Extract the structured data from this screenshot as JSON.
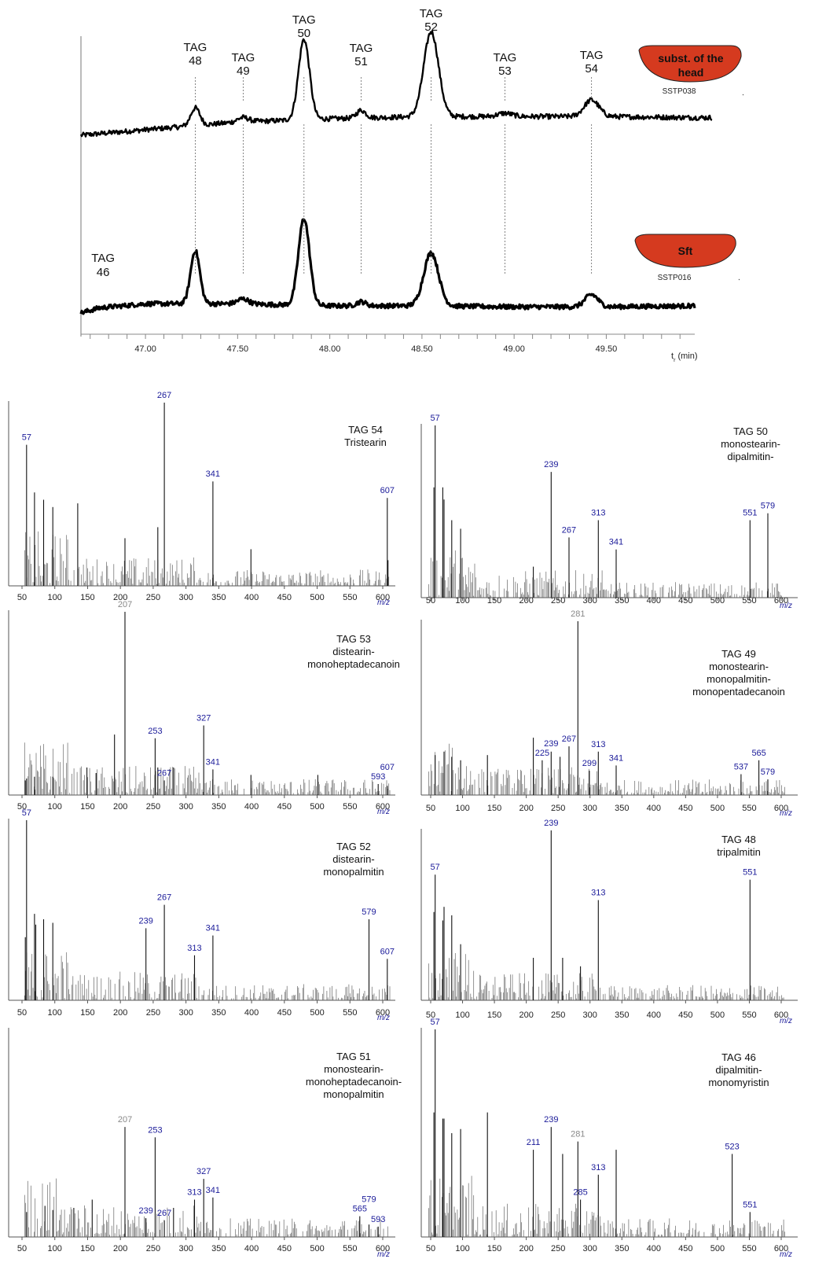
{
  "colors": {
    "annotation": "#1a1a99",
    "annotation_gray": "#888888",
    "badge_fill": "#d53a1f",
    "trace": "#000000"
  },
  "chart_data": [
    {
      "type": "line",
      "chart": "chromatogram",
      "xlim": [
        46.65,
        49.98
      ],
      "xticks": [
        "47.00",
        "47.50",
        "48.00",
        "48.50",
        "49.00",
        "49.50"
      ],
      "xtick_values": [
        47.0,
        47.5,
        48.0,
        48.5,
        49.0,
        49.5
      ],
      "xlabel": "tr (min)",
      "peaks": [
        {
          "label": [
            "TAG",
            "48"
          ],
          "rt": 47.27
        },
        {
          "label": [
            "TAG",
            "49"
          ],
          "rt": 47.53
        },
        {
          "label": [
            "TAG",
            "50"
          ],
          "rt": 47.86
        },
        {
          "label": [
            "TAG",
            "51"
          ],
          "rt": 48.17
        },
        {
          "label": [
            "TAG",
            "52"
          ],
          "rt": 48.55
        },
        {
          "label": [
            "TAG",
            "53"
          ],
          "rt": 48.95
        },
        {
          "label": [
            "TAG",
            "54"
          ],
          "rt": 49.42
        }
      ],
      "extra_labels": [
        {
          "label": [
            "TAG",
            "46"
          ],
          "rt": 46.77
        }
      ],
      "series": [
        {
          "sample": "SSTP038",
          "badge": "subst. of the head",
          "baseline": [
            [
              46.65,
              0.0
            ],
            [
              47.0,
              0.05
            ],
            [
              47.5,
              0.12
            ],
            [
              48.0,
              0.15
            ],
            [
              48.5,
              0.17
            ],
            [
              49.0,
              0.17
            ],
            [
              49.5,
              0.17
            ],
            [
              49.98,
              0.16
            ]
          ],
          "peaks": [
            [
              47.27,
              0.16,
              0.025
            ],
            [
              47.53,
              0.04,
              0.03
            ],
            [
              47.86,
              0.73,
              0.03
            ],
            [
              48.17,
              0.07,
              0.025
            ],
            [
              48.55,
              0.77,
              0.04
            ],
            [
              48.95,
              0.03,
              0.04
            ],
            [
              49.42,
              0.15,
              0.04
            ]
          ]
        },
        {
          "sample": "SSTP016",
          "badge": "Sft",
          "baseline": [
            [
              46.65,
              0.0
            ],
            [
              46.75,
              0.05
            ],
            [
              47.0,
              0.09
            ],
            [
              47.5,
              0.09
            ],
            [
              48.0,
              0.07
            ],
            [
              48.5,
              0.07
            ],
            [
              49.0,
              0.06
            ],
            [
              49.5,
              0.06
            ],
            [
              49.98,
              0.07
            ]
          ],
          "peaks": [
            [
              47.27,
              0.52,
              0.025
            ],
            [
              47.53,
              0.05,
              0.03
            ],
            [
              47.86,
              0.85,
              0.03
            ],
            [
              48.17,
              0.04,
              0.025
            ],
            [
              48.55,
              0.52,
              0.04
            ],
            [
              49.42,
              0.12,
              0.035
            ]
          ]
        }
      ]
    },
    {
      "type": "bar",
      "chart": "mass-spectrum",
      "title": [
        "TAG 54",
        "Tristearin"
      ],
      "xlim": [
        40,
        615
      ],
      "xticks": [
        50,
        100,
        150,
        200,
        250,
        300,
        350,
        400,
        450,
        500,
        550,
        600
      ],
      "xlabel": "m/z",
      "ylim": [
        0,
        100
      ],
      "peaks": [
        [
          57,
          77
        ],
        [
          69,
          51
        ],
        [
          83,
          47
        ],
        [
          97,
          43
        ],
        [
          135,
          45
        ],
        [
          207,
          26
        ],
        [
          257,
          32
        ],
        [
          267,
          100
        ],
        [
          341,
          57
        ],
        [
          399,
          20
        ],
        [
          607,
          48
        ],
        [
          608,
          14
        ]
      ],
      "annotations": [
        {
          "mz": 57,
          "text": "57",
          "color": "blue"
        },
        {
          "mz": 267,
          "text": "267",
          "color": "blue"
        },
        {
          "mz": 341,
          "text": "341",
          "color": "blue"
        },
        {
          "mz": 607,
          "text": "607",
          "color": "blue"
        }
      ]
    },
    {
      "type": "bar",
      "chart": "mass-spectrum",
      "title": [
        "TAG 50",
        "monostearin-",
        "dipalmitin-"
      ],
      "xlim": [
        33,
        610
      ],
      "xticks": [
        50,
        100,
        150,
        200,
        250,
        300,
        350,
        400,
        450,
        500,
        550,
        600
      ],
      "xlabel": "m/z",
      "ylim": [
        0,
        100
      ],
      "peaks": [
        [
          55,
          64
        ],
        [
          57,
          100
        ],
        [
          69,
          64
        ],
        [
          71,
          57
        ],
        [
          83,
          45
        ],
        [
          97,
          40
        ],
        [
          211,
          18
        ],
        [
          239,
          73
        ],
        [
          267,
          35
        ],
        [
          313,
          45
        ],
        [
          341,
          28
        ],
        [
          551,
          45
        ],
        [
          579,
          49
        ]
      ],
      "annotations": [
        {
          "mz": 57,
          "text": "57",
          "color": "blue"
        },
        {
          "mz": 239,
          "text": "239",
          "color": "blue"
        },
        {
          "mz": 267,
          "text": "267",
          "color": "blue"
        },
        {
          "mz": 313,
          "text": "313",
          "color": "blue"
        },
        {
          "mz": 341,
          "text": "341",
          "color": "blue"
        },
        {
          "mz": 551,
          "text": "551",
          "color": "blue"
        },
        {
          "mz": 579,
          "text": "579",
          "color": "blue"
        }
      ]
    },
    {
      "type": "bar",
      "chart": "mass-spectrum",
      "title": [
        "TAG 53",
        "distearin-",
        "monoheptadecanoin"
      ],
      "xlim": [
        40,
        615
      ],
      "xticks": [
        50,
        100,
        150,
        200,
        250,
        300,
        350,
        400,
        450,
        500,
        550,
        600
      ],
      "xlabel": "m/z",
      "ylim": [
        0,
        100
      ],
      "peaks": [
        [
          55,
          8
        ],
        [
          57,
          9
        ],
        [
          69,
          10
        ],
        [
          97,
          10
        ],
        [
          149,
          15
        ],
        [
          163,
          12
        ],
        [
          191,
          33
        ],
        [
          207,
          100
        ],
        [
          253,
          31
        ],
        [
          257,
          15
        ],
        [
          267,
          8
        ],
        [
          281,
          15
        ],
        [
          327,
          38
        ],
        [
          341,
          14
        ],
        [
          399,
          11
        ],
        [
          501,
          11
        ],
        [
          593,
          6
        ],
        [
          607,
          5
        ]
      ],
      "annotations": [
        {
          "mz": 207,
          "text": "207",
          "color": "gray"
        },
        {
          "mz": 253,
          "text": "253",
          "color": "blue"
        },
        {
          "mz": 267,
          "text": "267",
          "color": "blue"
        },
        {
          "mz": 327,
          "text": "327",
          "color": "blue"
        },
        {
          "mz": 341,
          "text": "341",
          "color": "blue"
        },
        {
          "mz": 593,
          "text": "593",
          "color": "blue"
        },
        {
          "mz": 607,
          "text": "607",
          "color": "blue"
        }
      ]
    },
    {
      "type": "bar",
      "chart": "mass-spectrum",
      "title": [
        "TAG 49",
        "monostearin-",
        "monopalmitin-",
        "monopentadecanoin"
      ],
      "xlim": [
        33,
        610
      ],
      "xticks": [
        50,
        100,
        150,
        200,
        250,
        300,
        350,
        400,
        450,
        500,
        550,
        600
      ],
      "xlabel": "m/z",
      "ylim": [
        0,
        100
      ],
      "peaks": [
        [
          57,
          23
        ],
        [
          71,
          25
        ],
        [
          83,
          22
        ],
        [
          97,
          20
        ],
        [
          139,
          23
        ],
        [
          211,
          33
        ],
        [
          225,
          20
        ],
        [
          239,
          25
        ],
        [
          253,
          22
        ],
        [
          267,
          28
        ],
        [
          281,
          100
        ],
        [
          299,
          14
        ],
        [
          313,
          25
        ],
        [
          341,
          17
        ],
        [
          537,
          12
        ],
        [
          565,
          20
        ],
        [
          579,
          9
        ]
      ],
      "annotations": [
        {
          "mz": 281,
          "text": "281",
          "color": "gray"
        },
        {
          "mz": 225,
          "text": "225",
          "color": "blue"
        },
        {
          "mz": 239,
          "text": "239",
          "color": "blue"
        },
        {
          "mz": 267,
          "text": "267",
          "color": "blue"
        },
        {
          "mz": 299,
          "text": "299",
          "color": "blue"
        },
        {
          "mz": 313,
          "text": "313",
          "color": "blue"
        },
        {
          "mz": 341,
          "text": "341",
          "color": "blue"
        },
        {
          "mz": 537,
          "text": "537",
          "color": "blue"
        },
        {
          "mz": 565,
          "text": "565",
          "color": "blue"
        },
        {
          "mz": 579,
          "text": "579",
          "color": "blue"
        }
      ]
    },
    {
      "type": "bar",
      "chart": "mass-spectrum",
      "title": [
        "TAG 52",
        "distearin-",
        "monopalmitin"
      ],
      "xlim": [
        40,
        615
      ],
      "xticks": [
        50,
        100,
        150,
        200,
        250,
        300,
        350,
        400,
        450,
        500,
        550,
        600
      ],
      "xlabel": "m/z",
      "ylim": [
        0,
        100
      ],
      "peaks": [
        [
          55,
          35
        ],
        [
          57,
          100
        ],
        [
          69,
          48
        ],
        [
          71,
          42
        ],
        [
          83,
          45
        ],
        [
          97,
          43
        ],
        [
          239,
          40
        ],
        [
          267,
          53
        ],
        [
          313,
          25
        ],
        [
          341,
          36
        ],
        [
          579,
          45
        ],
        [
          607,
          23
        ]
      ],
      "annotations": [
        {
          "mz": 57,
          "text": "57",
          "color": "blue"
        },
        {
          "mz": 239,
          "text": "239",
          "color": "blue"
        },
        {
          "mz": 267,
          "text": "267",
          "color": "blue"
        },
        {
          "mz": 313,
          "text": "313",
          "color": "blue"
        },
        {
          "mz": 341,
          "text": "341",
          "color": "blue"
        },
        {
          "mz": 579,
          "text": "579",
          "color": "blue"
        },
        {
          "mz": 607,
          "text": "607",
          "color": "blue"
        }
      ]
    },
    {
      "type": "bar",
      "chart": "mass-spectrum",
      "title": [
        "TAG 48",
        "tripalmitin"
      ],
      "xlim": [
        33,
        610
      ],
      "xticks": [
        50,
        100,
        150,
        200,
        250,
        300,
        350,
        400,
        450,
        500,
        550,
        600
      ],
      "xlabel": "m/z",
      "ylim": [
        0,
        100
      ],
      "peaks": [
        [
          55,
          52
        ],
        [
          57,
          74
        ],
        [
          69,
          47
        ],
        [
          71,
          55
        ],
        [
          83,
          50
        ],
        [
          97,
          33
        ],
        [
          211,
          25
        ],
        [
          239,
          100
        ],
        [
          257,
          25
        ],
        [
          285,
          20
        ],
        [
          313,
          59
        ],
        [
          551,
          71
        ]
      ],
      "annotations": [
        {
          "mz": 57,
          "text": "57",
          "color": "blue"
        },
        {
          "mz": 239,
          "text": "239",
          "color": "blue"
        },
        {
          "mz": 313,
          "text": "313",
          "color": "blue"
        },
        {
          "mz": 551,
          "text": "551",
          "color": "blue"
        }
      ]
    },
    {
      "type": "bar",
      "chart": "mass-spectrum",
      "title": [
        "TAG 51",
        "monostearin-",
        "monoheptadecanoin-",
        "monopalmitin"
      ],
      "xlim": [
        40,
        615
      ],
      "xticks": [
        50,
        100,
        150,
        200,
        250,
        300,
        350,
        400,
        450,
        500,
        550,
        600
      ],
      "xlabel": "m/z",
      "ylim": [
        0,
        100
      ],
      "peaks": [
        [
          57,
          12
        ],
        [
          85,
          15
        ],
        [
          97,
          13
        ],
        [
          129,
          14
        ],
        [
          157,
          18
        ],
        [
          207,
          53
        ],
        [
          239,
          9
        ],
        [
          253,
          48
        ],
        [
          267,
          8
        ],
        [
          281,
          14
        ],
        [
          313,
          18
        ],
        [
          327,
          28
        ],
        [
          341,
          19
        ],
        [
          565,
          10
        ],
        [
          579,
          6
        ],
        [
          593,
          5
        ]
      ],
      "annotations": [
        {
          "mz": 207,
          "text": "207",
          "color": "gray"
        },
        {
          "mz": 253,
          "text": "253",
          "color": "blue"
        },
        {
          "mz": 239,
          "text": "239",
          "color": "blue"
        },
        {
          "mz": 267,
          "text": "267",
          "color": "blue"
        },
        {
          "mz": 313,
          "text": "313",
          "color": "blue"
        },
        {
          "mz": 327,
          "text": "327",
          "color": "blue"
        },
        {
          "mz": 341,
          "text": "341",
          "color": "blue"
        },
        {
          "mz": 565,
          "text": "565",
          "color": "blue"
        },
        {
          "mz": 579,
          "text": "579",
          "color": "blue"
        },
        {
          "mz": 593,
          "text": "593",
          "color": "blue"
        }
      ]
    },
    {
      "type": "bar",
      "chart": "mass-spectrum",
      "title": [
        "TAG 46",
        "dipalmitin-",
        "monomyristin"
      ],
      "xlim": [
        33,
        610
      ],
      "xticks": [
        50,
        100,
        150,
        200,
        250,
        300,
        350,
        400,
        450,
        500,
        550,
        600
      ],
      "xlabel": "m/z",
      "ylim": [
        0,
        100
      ],
      "peaks": [
        [
          55,
          60
        ],
        [
          57,
          100
        ],
        [
          69,
          57
        ],
        [
          71,
          57
        ],
        [
          83,
          50
        ],
        [
          97,
          52
        ],
        [
          139,
          60
        ],
        [
          211,
          42
        ],
        [
          239,
          53
        ],
        [
          257,
          40
        ],
        [
          281,
          46
        ],
        [
          285,
          18
        ],
        [
          313,
          30
        ],
        [
          341,
          42
        ],
        [
          523,
          40
        ],
        [
          551,
          12
        ]
      ],
      "annotations": [
        {
          "mz": 57,
          "text": "57",
          "color": "blue"
        },
        {
          "mz": 211,
          "text": "211",
          "color": "blue"
        },
        {
          "mz": 239,
          "text": "239",
          "color": "blue"
        },
        {
          "mz": 281,
          "text": "281",
          "color": "gray"
        },
        {
          "mz": 285,
          "text": "285",
          "color": "blue"
        },
        {
          "mz": 313,
          "text": "313",
          "color": "blue"
        },
        {
          "mz": 523,
          "text": "523",
          "color": "blue"
        },
        {
          "mz": 551,
          "text": "551",
          "color": "blue"
        }
      ]
    }
  ]
}
